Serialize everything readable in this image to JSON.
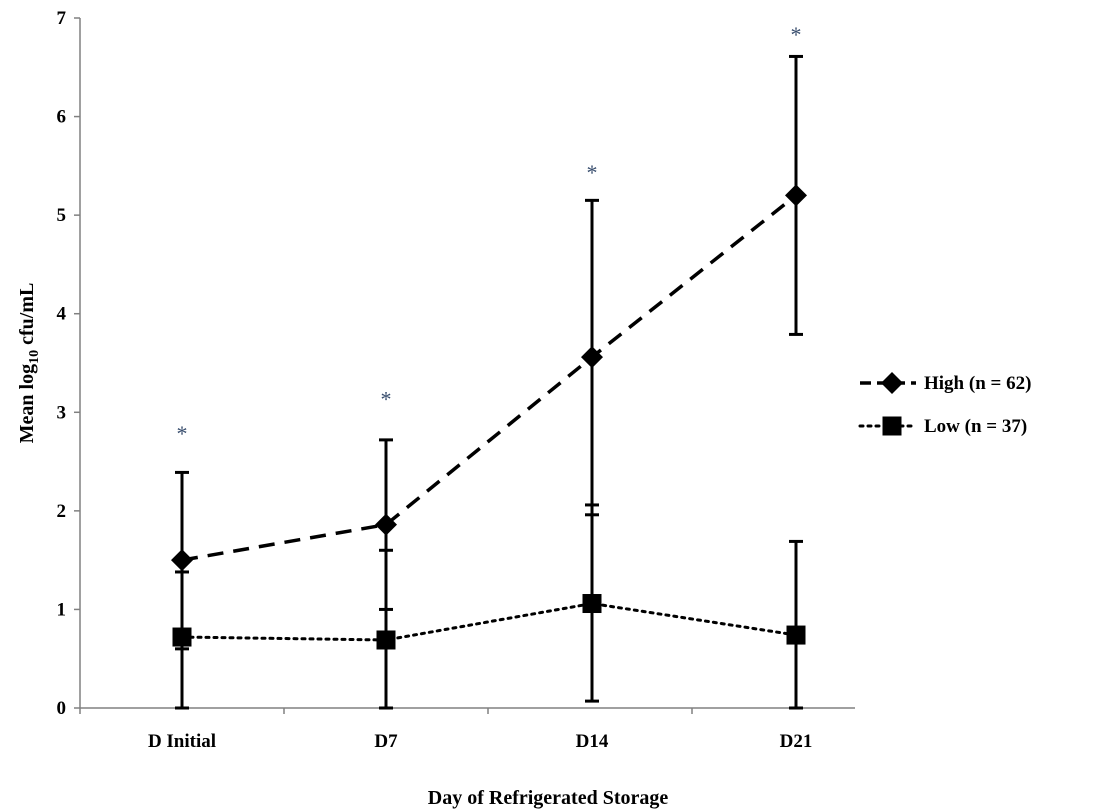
{
  "chart_data": {
    "type": "line",
    "title": "",
    "xlabel": "Day of Refrigerated Storage",
    "ylabel": "Mean log10 cfu/mL",
    "ylabel_parts": {
      "pre": "Mean  log",
      "sub": "10",
      "post": " cfu/mL"
    },
    "categories": [
      "D Initial",
      "D7",
      "D14",
      "D21"
    ],
    "ylim": [
      0,
      7
    ],
    "yticks": [
      0,
      1,
      2,
      3,
      4,
      5,
      6,
      7
    ],
    "grid": false,
    "legend_position": "right",
    "series": [
      {
        "name": "High (n = 62)",
        "marker": "diamond",
        "line_style": "dashed",
        "values": [
          1.5,
          1.86,
          3.56,
          5.2
        ],
        "error_low": [
          0.6,
          1.0,
          1.96,
          3.79
        ],
        "error_high": [
          2.39,
          2.72,
          5.15,
          6.61
        ]
      },
      {
        "name": "Low (n = 37)",
        "marker": "square",
        "line_style": "dotted",
        "values": [
          0.72,
          0.69,
          1.06,
          0.74
        ],
        "error_low": [
          0.0,
          0.0,
          0.07,
          0.0
        ],
        "error_high": [
          1.38,
          1.6,
          2.06,
          1.69
        ]
      }
    ],
    "annotations": [
      {
        "category": "D Initial",
        "text": "*",
        "y": 2.85
      },
      {
        "category": "D7",
        "text": "*",
        "y": 3.2
      },
      {
        "category": "D14",
        "text": "*",
        "y": 5.5
      },
      {
        "category": "D21",
        "text": "*",
        "y": 6.9
      }
    ],
    "colors": {
      "line": "#000000",
      "axis": "#808080",
      "annotation": "#3a4f6f"
    }
  }
}
